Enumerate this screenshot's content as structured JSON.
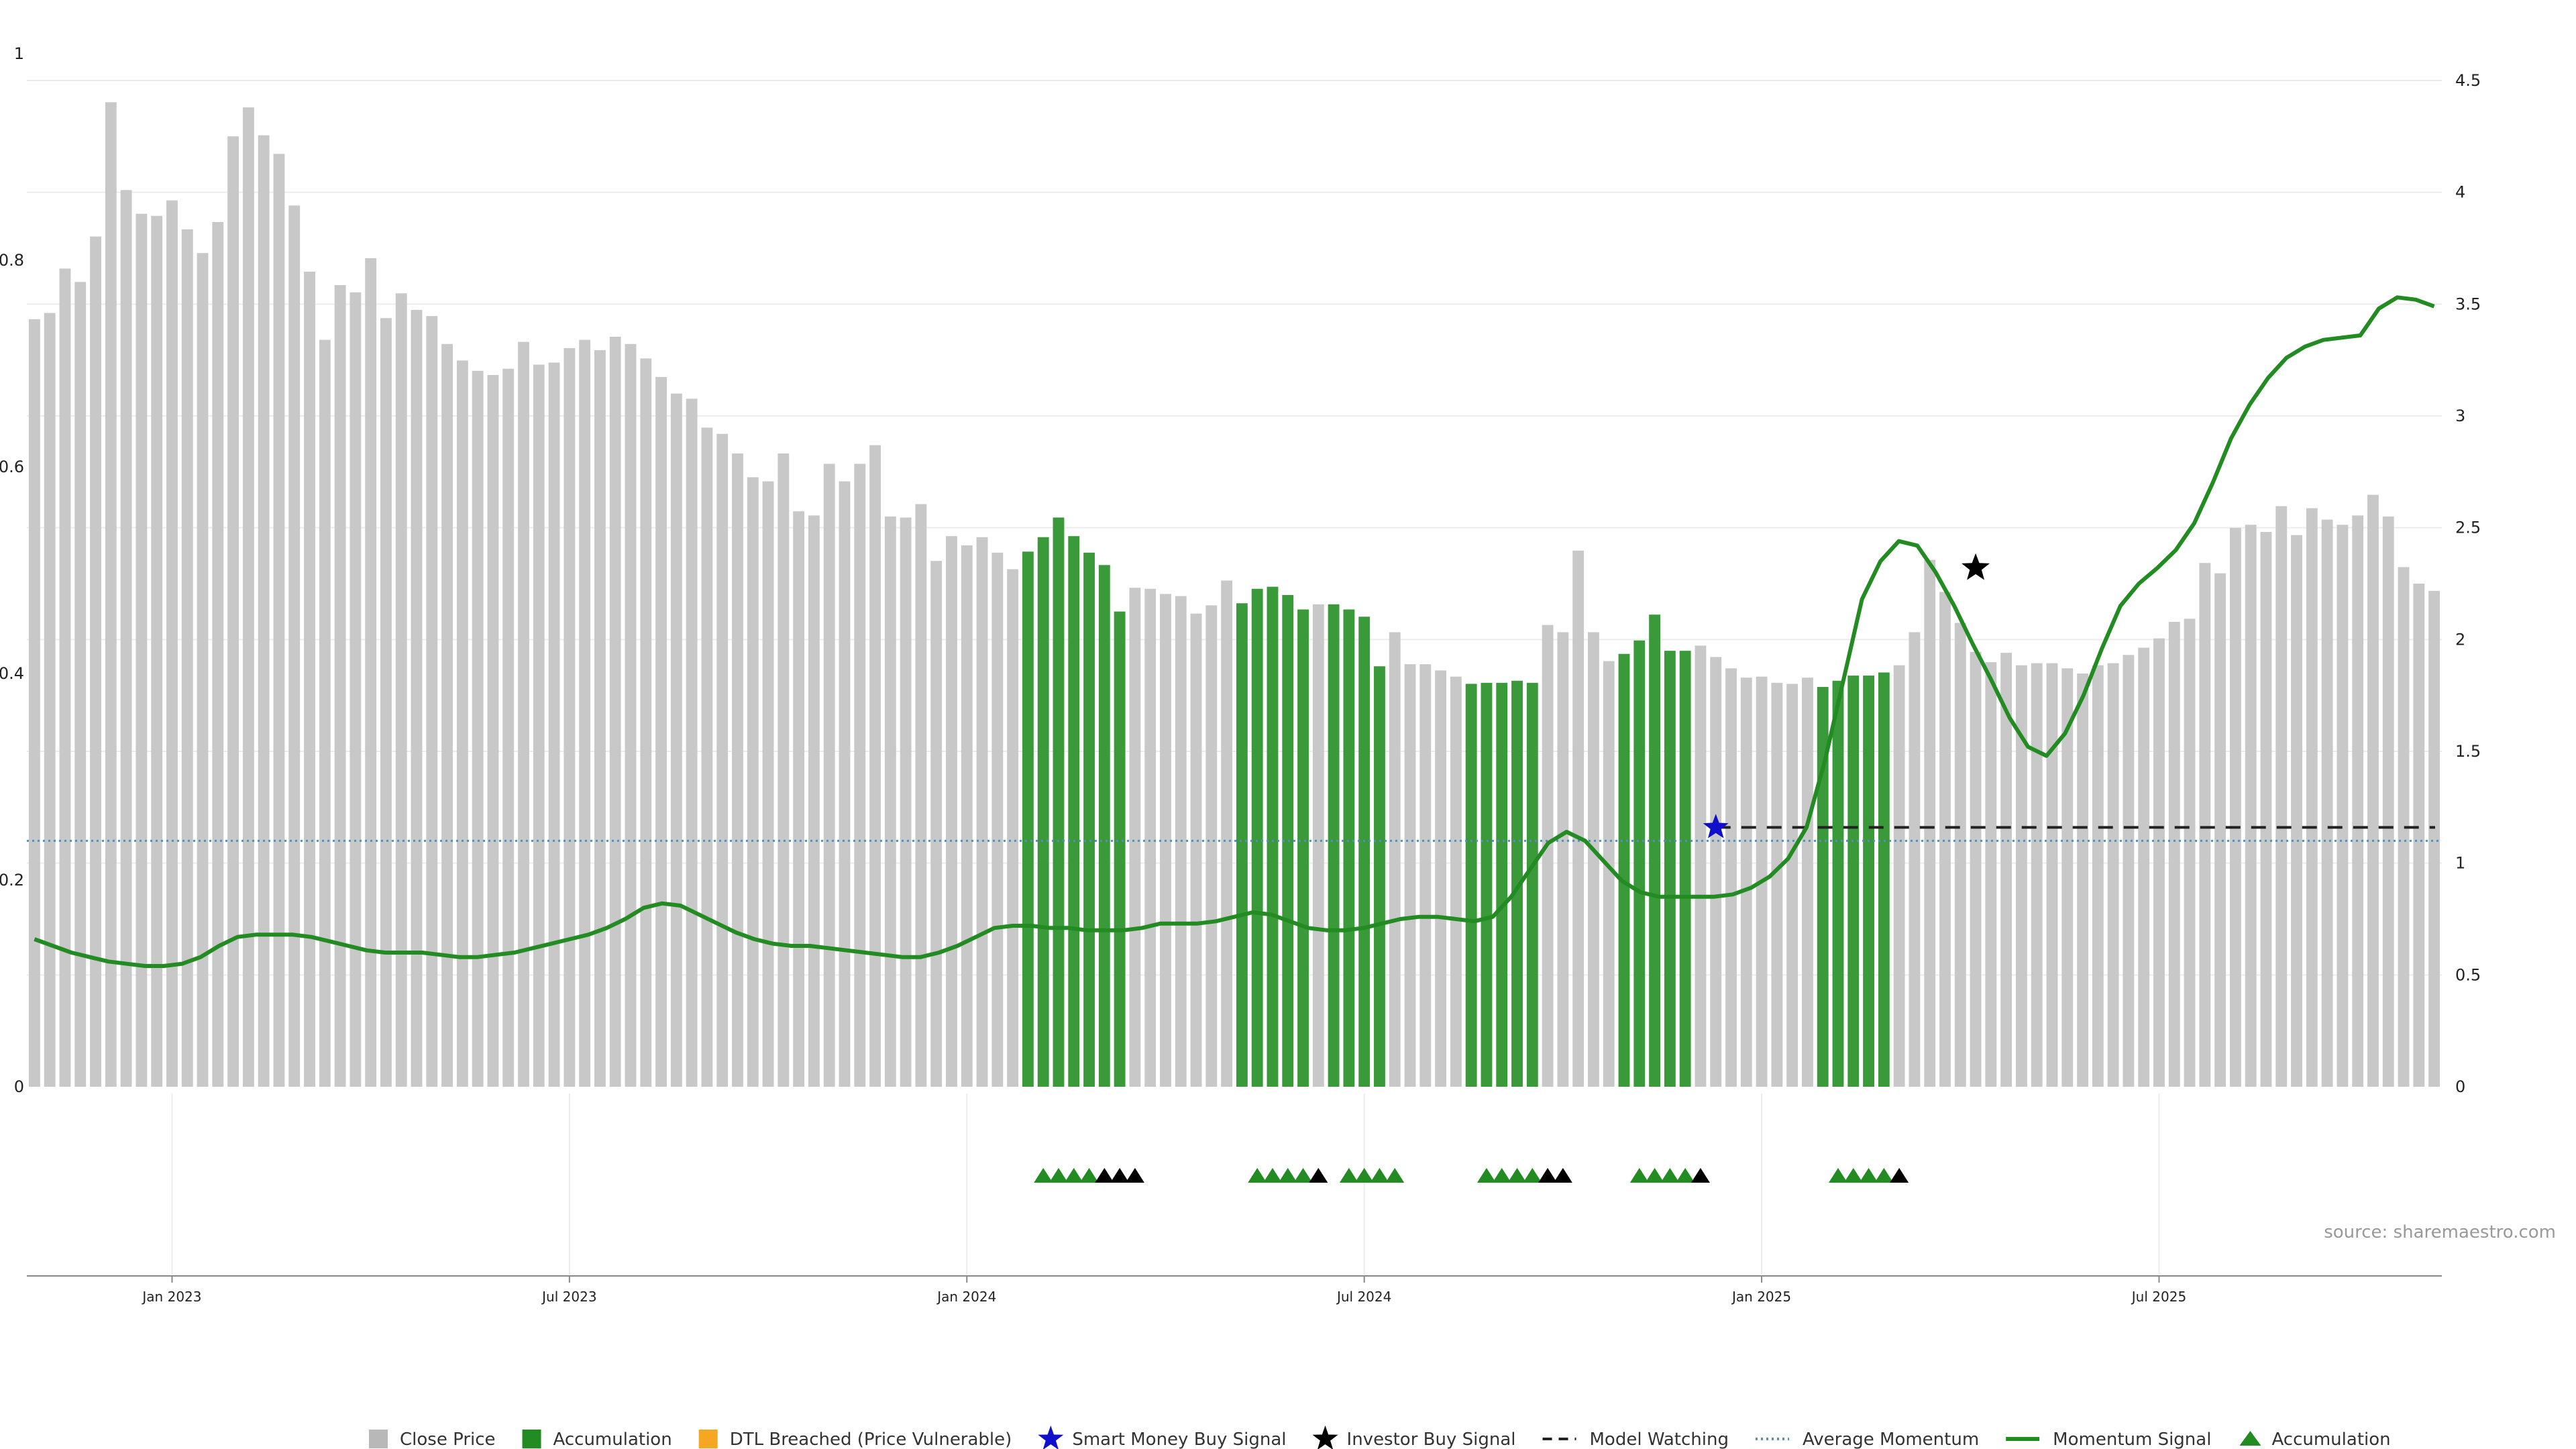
{
  "source_text": "source: sharemaestro.com",
  "colors": {
    "close": "#c8c8c8",
    "accumulation": "#3a9a3a",
    "dtl": "#f5a623",
    "smart_money": "#1010cc",
    "investor": "#000000",
    "model_watching": "#222222",
    "avg_momentum": "#5a8fb0",
    "momentum": "#228B22",
    "grid": "#ececec"
  },
  "legend": [
    {
      "id": "close",
      "label": "Close Price",
      "kind": "square",
      "color": "#b8b8b8"
    },
    {
      "id": "accum",
      "label": "Accumulation",
      "kind": "square",
      "color": "#228B22"
    },
    {
      "id": "dtl",
      "label": "DTL Breached (Price Vulnerable)",
      "kind": "square",
      "color": "#f5a623"
    },
    {
      "id": "smart",
      "label": "Smart Money Buy Signal",
      "kind": "star",
      "color": "#1010cc"
    },
    {
      "id": "investor",
      "label": "Investor Buy Signal",
      "kind": "star",
      "color": "#000000"
    },
    {
      "id": "watch",
      "label": "Model Watching",
      "kind": "dash",
      "color": "#222222"
    },
    {
      "id": "avg",
      "label": "Average Momentum",
      "kind": "dot",
      "color": "#5a8fb0"
    },
    {
      "id": "mom",
      "label": "Momentum Signal",
      "kind": "line",
      "color": "#228B22"
    },
    {
      "id": "acc_tri",
      "label": "Accumulation",
      "kind": "triangle",
      "color": "#228B22"
    }
  ],
  "chart_data": {
    "type": "bar",
    "title": "",
    "x_axis": {
      "tick_labels": [
        "Jan 2023",
        "Jul 2023",
        "Jan 2024",
        "Jul 2024",
        "Jan 2025",
        "Jul 2025"
      ],
      "tick_weeks": [
        9,
        35,
        61,
        87,
        113,
        139
      ]
    },
    "y_left": {
      "range": [
        0,
        1
      ],
      "ticks": [
        0,
        0.2,
        0.4,
        0.6,
        0.8,
        1
      ]
    },
    "y_right": {
      "range": [
        0,
        4.6
      ],
      "ticks": [
        0,
        0.5,
        1,
        1.5,
        2,
        2.5,
        3,
        3.5,
        4,
        4.5
      ]
    },
    "close_prices": [
      0.743,
      0.749,
      0.792,
      0.779,
      0.823,
      0.953,
      0.868,
      0.845,
      0.843,
      0.858,
      0.83,
      0.807,
      0.837,
      0.92,
      0.948,
      0.921,
      0.903,
      0.853,
      0.789,
      0.723,
      0.776,
      0.769,
      0.802,
      0.744,
      0.768,
      0.752,
      0.746,
      0.719,
      0.703,
      0.693,
      0.689,
      0.695,
      0.721,
      0.699,
      0.701,
      0.715,
      0.723,
      0.713,
      0.726,
      0.719,
      0.705,
      0.687,
      0.671,
      0.666,
      0.638,
      0.632,
      0.613,
      0.59,
      0.586,
      0.613,
      0.557,
      0.553,
      0.603,
      0.586,
      0.603,
      0.621,
      0.552,
      0.551,
      0.564,
      0.509,
      0.533,
      0.524,
      0.532,
      0.517,
      0.501,
      0.518,
      0.532,
      0.551,
      0.533,
      0.517,
      0.505,
      0.46,
      0.483,
      0.482,
      0.477,
      0.475,
      0.458,
      0.466,
      0.49,
      0.468,
      0.482,
      0.484,
      0.476,
      0.462,
      0.467,
      0.467,
      0.462,
      0.455,
      0.407,
      0.44,
      0.409,
      0.409,
      0.403,
      0.397,
      0.39,
      0.391,
      0.391,
      0.393,
      0.391,
      0.447,
      0.44,
      0.519,
      0.44,
      0.412,
      0.419,
      0.432,
      0.457,
      0.422,
      0.422,
      0.427,
      0.416,
      0.405,
      0.396,
      0.397,
      0.391,
      0.39,
      0.396,
      0.387,
      0.393,
      0.398,
      0.398,
      0.401,
      0.408,
      0.44,
      0.51,
      0.479,
      0.449,
      0.421,
      0.411,
      0.42,
      0.408,
      0.41,
      0.41,
      0.405,
      0.4,
      0.408,
      0.41,
      0.418,
      0.425,
      0.434,
      0.45,
      0.453,
      0.507,
      0.497,
      0.541,
      0.544,
      0.537,
      0.562,
      0.534,
      0.56,
      0.549,
      0.544,
      0.553,
      0.573,
      0.552,
      0.503,
      0.487,
      0.48
    ],
    "accumulation_ranges": [
      [
        65,
        71
      ],
      [
        79,
        83
      ],
      [
        85,
        88
      ],
      [
        94,
        98
      ],
      [
        104,
        108
      ],
      [
        117,
        121
      ]
    ],
    "momentum_signal": [
      0.66,
      0.63,
      0.6,
      0.58,
      0.56,
      0.55,
      0.54,
      0.54,
      0.55,
      0.58,
      0.63,
      0.67,
      0.68,
      0.68,
      0.68,
      0.67,
      0.65,
      0.63,
      0.61,
      0.6,
      0.6,
      0.6,
      0.59,
      0.58,
      0.58,
      0.59,
      0.6,
      0.62,
      0.64,
      0.66,
      0.68,
      0.71,
      0.75,
      0.8,
      0.82,
      0.81,
      0.77,
      0.73,
      0.69,
      0.66,
      0.64,
      0.63,
      0.63,
      0.62,
      0.61,
      0.6,
      0.59,
      0.58,
      0.58,
      0.6,
      0.63,
      0.67,
      0.71,
      0.72,
      0.72,
      0.71,
      0.71,
      0.7,
      0.7,
      0.7,
      0.71,
      0.73,
      0.73,
      0.73,
      0.74,
      0.76,
      0.78,
      0.77,
      0.74,
      0.71,
      0.7,
      0.7,
      0.71,
      0.73,
      0.75,
      0.76,
      0.76,
      0.75,
      0.74,
      0.76,
      0.85,
      0.97,
      1.09,
      1.14,
      1.1,
      1.01,
      0.92,
      0.87,
      0.85,
      0.85,
      0.85,
      0.85,
      0.86,
      0.89,
      0.94,
      1.02,
      1.16,
      1.46,
      1.82,
      2.18,
      2.35,
      2.44,
      2.42,
      2.3,
      2.15,
      1.98,
      1.82,
      1.65,
      1.52,
      1.48,
      1.58,
      1.75,
      1.96,
      2.15,
      2.25,
      2.32,
      2.4,
      2.52,
      2.7,
      2.9,
      3.05,
      3.17,
      3.26,
      3.31,
      3.34,
      3.35,
      3.36,
      3.48,
      3.53,
      3.52,
      3.49
    ],
    "momentum_start_week": 0,
    "momentum_points_span": 162,
    "average_momentum": 1.1,
    "model_watching": {
      "value": 1.16,
      "from_week": 110
    },
    "smart_money_signal": {
      "week": 110,
      "value": 1.16
    },
    "investor_signal": {
      "week": 127,
      "value": 2.32
    },
    "accumulation_triangles": [
      {
        "week": 66,
        "color": "green"
      },
      {
        "week": 67,
        "color": "green"
      },
      {
        "week": 68,
        "color": "green"
      },
      {
        "week": 69,
        "color": "green"
      },
      {
        "week": 70,
        "color": "black"
      },
      {
        "week": 71,
        "color": "black"
      },
      {
        "week": 72,
        "color": "black"
      },
      {
        "week": 80,
        "color": "green"
      },
      {
        "week": 81,
        "color": "green"
      },
      {
        "week": 82,
        "color": "green"
      },
      {
        "week": 83,
        "color": "green"
      },
      {
        "week": 84,
        "color": "black"
      },
      {
        "week": 86,
        "color": "green"
      },
      {
        "week": 87,
        "color": "green"
      },
      {
        "week": 88,
        "color": "green"
      },
      {
        "week": 89,
        "color": "green"
      },
      {
        "week": 95,
        "color": "green"
      },
      {
        "week": 96,
        "color": "green"
      },
      {
        "week": 97,
        "color": "green"
      },
      {
        "week": 98,
        "color": "green"
      },
      {
        "week": 99,
        "color": "black"
      },
      {
        "week": 100,
        "color": "black"
      },
      {
        "week": 105,
        "color": "green"
      },
      {
        "week": 106,
        "color": "green"
      },
      {
        "week": 107,
        "color": "green"
      },
      {
        "week": 108,
        "color": "green"
      },
      {
        "week": 109,
        "color": "black"
      },
      {
        "week": 118,
        "color": "green"
      },
      {
        "week": 119,
        "color": "green"
      },
      {
        "week": 120,
        "color": "green"
      },
      {
        "week": 121,
        "color": "green"
      },
      {
        "week": 122,
        "color": "black"
      }
    ]
  }
}
